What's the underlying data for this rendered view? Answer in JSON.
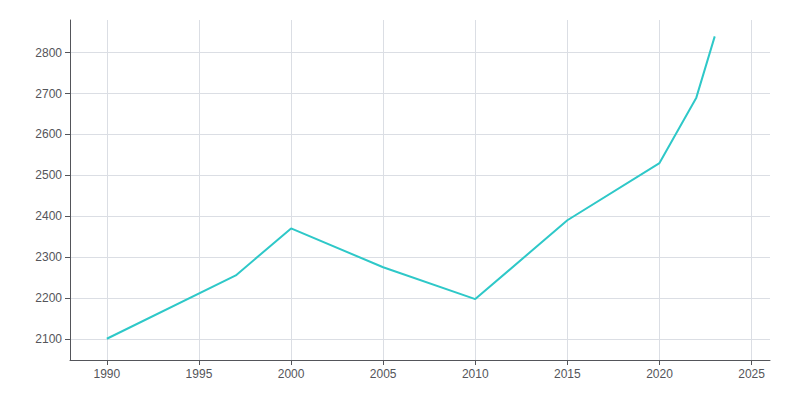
{
  "chart_data": {
    "type": "line",
    "x": [
      1990,
      1997,
      2000,
      2005,
      2010,
      2015,
      2020,
      2022,
      2023
    ],
    "values": [
      2100,
      2255,
      2370,
      2275,
      2197,
      2390,
      2530,
      2690,
      2840
    ],
    "color": "#2EC8C8",
    "xlim": [
      1988,
      2026
    ],
    "ylim": [
      2048,
      2880
    ],
    "xticks": [
      1990,
      1995,
      2000,
      2005,
      2010,
      2015,
      2020,
      2025
    ],
    "yticks": [
      2100,
      2200,
      2300,
      2400,
      2500,
      2600,
      2700,
      2800
    ],
    "grid": true
  }
}
